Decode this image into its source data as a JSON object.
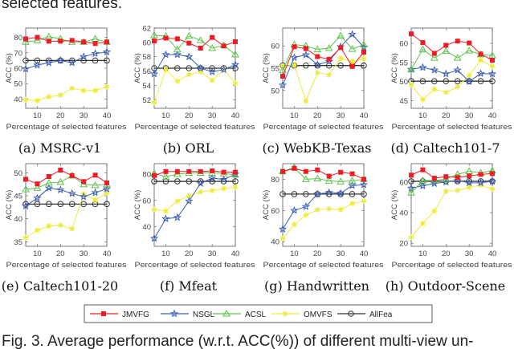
{
  "header_text": "selected features.",
  "caption": "Fig. 3. Average performance (w.r.t. ACC(%)) of different multi-view un-",
  "series_styles": {
    "JMVFG": {
      "color": "#ee1c25",
      "marker": "square"
    },
    "NSGL": {
      "color": "#3c5fb0",
      "marker": "star"
    },
    "ACSL": {
      "color": "#5cc24a",
      "marker": "triangle"
    },
    "OMVFS": {
      "color": "#eeea3a",
      "marker": "asterisk"
    },
    "AllFea": {
      "color": "#333333",
      "marker": "circle"
    }
  },
  "legend": [
    "JMVFG",
    "NSGL",
    "ACSL",
    "OMVFS",
    "AllFea"
  ],
  "chart_data": [
    {
      "type": "line",
      "caption": "(a)  MSRC-v1",
      "xlabel": "Percentage of selected features",
      "ylabel": "ACC (%)",
      "x": [
        5,
        10,
        15,
        20,
        25,
        30,
        35,
        40
      ],
      "xticks": [
        10,
        20,
        30,
        40
      ],
      "xlim": [
        5,
        40
      ],
      "ylim": [
        34,
        86
      ],
      "yticks": [
        40,
        50,
        60,
        70,
        80
      ],
      "series": [
        {
          "name": "JMVFG",
          "values": [
            79,
            80,
            77.5,
            77.5,
            78,
            77,
            76,
            77
          ]
        },
        {
          "name": "NSGL",
          "values": [
            59.5,
            62,
            63.5,
            65,
            63.5,
            67.5,
            69.5,
            70.5
          ]
        },
        {
          "name": "ACSL",
          "values": [
            77,
            78,
            80.5,
            79,
            77,
            77,
            79,
            77
          ]
        },
        {
          "name": "OMVFS",
          "values": [
            39.5,
            39,
            41.5,
            42.5,
            47,
            45.5,
            45.5,
            48
          ]
        },
        {
          "name": "AllFea",
          "values": [
            65,
            65,
            65,
            65,
            65,
            65,
            65,
            65
          ]
        }
      ]
    },
    {
      "type": "line",
      "caption": "(b)  ORL",
      "xlabel": "Percentage of selected features",
      "ylabel": "ACC (%)",
      "x": [
        5,
        10,
        15,
        20,
        25,
        30,
        35,
        40
      ],
      "xticks": [
        10,
        20,
        30,
        40
      ],
      "xlim": [
        5,
        40
      ],
      "ylim": [
        50.8,
        62
      ],
      "yticks": [
        52,
        54,
        56,
        58,
        60,
        62
      ],
      "series": [
        {
          "name": "JMVFG",
          "values": [
            60.2,
            60.6,
            60.5,
            59.9,
            59.2,
            60.7,
            59.5,
            60.1
          ]
        },
        {
          "name": "NSGL",
          "values": [
            55.6,
            58.3,
            58.3,
            58,
            56.4,
            55.9,
            56.2,
            56.9
          ]
        },
        {
          "name": "ACSL",
          "values": [
            61,
            60.9,
            59,
            60.9,
            60.3,
            59.2,
            59.6,
            58.3
          ]
        },
        {
          "name": "OMVFS",
          "values": [
            51.6,
            56.2,
            54.6,
            55.5,
            55.9,
            54.7,
            56.2,
            54.3
          ]
        },
        {
          "name": "AllFea",
          "values": [
            56.4,
            56.4,
            56.4,
            56.4,
            56.4,
            56.4,
            56.4,
            56.4
          ]
        }
      ]
    },
    {
      "type": "line",
      "caption": "(c)  WebKB-Texas",
      "xlabel": "Percentage of selected features",
      "ylabel": "ACC (%)",
      "x": [
        5,
        10,
        15,
        20,
        25,
        30,
        35,
        40
      ],
      "xticks": [
        10,
        20,
        30,
        40
      ],
      "xlim": [
        5,
        40
      ],
      "ylim": [
        46,
        64
      ],
      "yticks": [
        50,
        55,
        60
      ],
      "series": [
        {
          "name": "JMVFG",
          "values": [
            53.2,
            59.8,
            59.4,
            57.6,
            57,
            59.6,
            55.4,
            58.6
          ]
        },
        {
          "name": "NSGL",
          "values": [
            51.2,
            57.4,
            58,
            55.8,
            56.5,
            59.8,
            62.6,
            59.7
          ]
        },
        {
          "name": "ACSL",
          "values": [
            54.5,
            60.3,
            60,
            59.2,
            59.5,
            62.3,
            59.3,
            60.3
          ]
        },
        {
          "name": "OMVFS",
          "values": [
            55.5,
            55.7,
            47.6,
            54,
            53.5,
            57.2,
            56.5,
            57.1
          ]
        },
        {
          "name": "AllFea",
          "values": [
            55.6,
            55.6,
            55.6,
            55.6,
            55.6,
            55.6,
            55.6,
            55.6
          ]
        }
      ]
    },
    {
      "type": "line",
      "caption": "(d)  Caltech101-7",
      "xlabel": "Percentage of selected features",
      "ylabel": "ACC (%)",
      "x": [
        5,
        10,
        15,
        20,
        25,
        30,
        35,
        40
      ],
      "xticks": [
        10,
        20,
        30,
        40
      ],
      "xlim": [
        5,
        40
      ],
      "ylim": [
        43,
        64
      ],
      "yticks": [
        45,
        50,
        55,
        60
      ],
      "series": [
        {
          "name": "JMVFG",
          "values": [
            62.5,
            60.2,
            57.4,
            59.5,
            60.6,
            60.1,
            57.2,
            55.6
          ]
        },
        {
          "name": "NSGL",
          "values": [
            53.2,
            53.7,
            53,
            52,
            53,
            50,
            52.1,
            52
          ]
        },
        {
          "name": "ACSL",
          "values": [
            53.2,
            58.4,
            56.2,
            58,
            56.2,
            58.1,
            57.1,
            56.8
          ]
        },
        {
          "name": "OMVFS",
          "values": [
            49.2,
            45.3,
            48,
            47.2,
            48.6,
            51.6,
            55.6,
            54
          ]
        },
        {
          "name": "AllFea",
          "values": [
            50.1,
            50.1,
            50.1,
            50.1,
            50.1,
            50.1,
            50.1,
            50.1
          ]
        }
      ]
    },
    {
      "type": "line",
      "caption": "(e)  Caltech101-20",
      "xlabel": "Percentage of selected features",
      "ylabel": "ACC (%)",
      "x": [
        5,
        10,
        15,
        20,
        25,
        30,
        35,
        40
      ],
      "xticks": [
        10,
        20,
        30,
        40
      ],
      "xlim": [
        5,
        40
      ],
      "ylim": [
        34,
        52
      ],
      "yticks": [
        35,
        40,
        45,
        50
      ],
      "series": [
        {
          "name": "JMVFG",
          "values": [
            48.6,
            47.6,
            49.2,
            50.6,
            49.4,
            48.1,
            49.5,
            47.8
          ]
        },
        {
          "name": "NSGL",
          "values": [
            42.8,
            44.5,
            46.7,
            46.3,
            45.5,
            44.8,
            45.7,
            46.5
          ]
        },
        {
          "name": "ACSL",
          "values": [
            46.4,
            46.7,
            47.8,
            48,
            49.4,
            47.5,
            47.3,
            47.5
          ]
        },
        {
          "name": "OMVFS",
          "values": [
            35.9,
            37.5,
            38.4,
            38.6,
            37.8,
            45.4,
            44.1,
            45.6
          ]
        },
        {
          "name": "AllFea",
          "values": [
            43.2,
            43.2,
            43.2,
            43.2,
            43.2,
            43.2,
            43.2,
            43.2
          ]
        }
      ]
    },
    {
      "type": "line",
      "caption": "(f)  Mfeat",
      "xlabel": "Percentage of selected features",
      "ylabel": "ACC (%)",
      "x": [
        5,
        10,
        15,
        20,
        25,
        30,
        35,
        40
      ],
      "xticks": [
        10,
        20,
        30,
        40
      ],
      "xlim": [
        5,
        40
      ],
      "ylim": [
        25,
        88
      ],
      "yticks": [
        40,
        60,
        80
      ],
      "series": [
        {
          "name": "JMVFG",
          "values": [
            79,
            82,
            82,
            82,
            82,
            82.5,
            81.5,
            81.5
          ]
        },
        {
          "name": "NSGL",
          "values": [
            31,
            46,
            47,
            59.5,
            73,
            77,
            76,
            80
          ]
        },
        {
          "name": "ACSL",
          "values": [
            80.5,
            78,
            80,
            81,
            81,
            81,
            80.5,
            79.5
          ]
        },
        {
          "name": "OMVFS",
          "values": [
            53,
            52,
            59.5,
            63.5,
            66.5,
            67.5,
            69,
            70
          ]
        },
        {
          "name": "AllFea",
          "values": [
            74.5,
            74.5,
            74.5,
            74.5,
            74.5,
            74.5,
            74.5,
            74.5
          ]
        }
      ]
    },
    {
      "type": "line",
      "caption": "(g)  Handwritten",
      "xlabel": "Percentage of selected features",
      "ylabel": "ACC (%)",
      "x": [
        5,
        10,
        15,
        20,
        25,
        30,
        35,
        40
      ],
      "xticks": [
        10,
        20,
        30,
        40
      ],
      "xlim": [
        5,
        40
      ],
      "ylim": [
        37,
        90
      ],
      "yticks": [
        40,
        60,
        80
      ],
      "series": [
        {
          "name": "JMVFG",
          "values": [
            85,
            87,
            85,
            86,
            82,
            84.5,
            83.5,
            80
          ]
        },
        {
          "name": "NSGL",
          "values": [
            48,
            60,
            62.5,
            70.5,
            71.5,
            71,
            76,
            76.5
          ]
        },
        {
          "name": "ACSL",
          "values": [
            85,
            87.5,
            80,
            80.5,
            79,
            78.5,
            79,
            80
          ]
        },
        {
          "name": "OMVFS",
          "values": [
            42,
            51,
            57,
            60.5,
            61,
            60.5,
            64.5,
            66
          ]
        },
        {
          "name": "AllFea",
          "values": [
            70.5,
            70.5,
            70.5,
            70.5,
            70.5,
            70.5,
            70.5,
            70.5
          ]
        }
      ]
    },
    {
      "type": "line",
      "caption": "(h)  Outdoor-Scene",
      "xlabel": "Percentage of selected features",
      "ylabel": "ACC (%)",
      "x": [
        5,
        10,
        15,
        20,
        25,
        30,
        35,
        40
      ],
      "xticks": [
        10,
        20,
        30,
        40
      ],
      "xlim": [
        5,
        40
      ],
      "ylim": [
        18,
        72
      ],
      "yticks": [
        20,
        40,
        60
      ],
      "series": [
        {
          "name": "JMVFG",
          "values": [
            64.5,
            68,
            62.5,
            63.5,
            63,
            64,
            65,
            65.5
          ]
        },
        {
          "name": "NSGL",
          "values": [
            56,
            57.5,
            59,
            60,
            61,
            59.5,
            59.5,
            60.5
          ]
        },
        {
          "name": "ACSL",
          "values": [
            53,
            61,
            61,
            62,
            65,
            67,
            66,
            67.5
          ]
        },
        {
          "name": "OMVFS",
          "values": [
            24,
            33,
            41,
            54,
            54.5,
            56.5,
            58,
            55.5
          ]
        },
        {
          "name": "AllFea",
          "values": [
            60.5,
            60.5,
            60.5,
            60.5,
            60.5,
            60.5,
            60.5,
            60.5
          ]
        }
      ]
    }
  ]
}
